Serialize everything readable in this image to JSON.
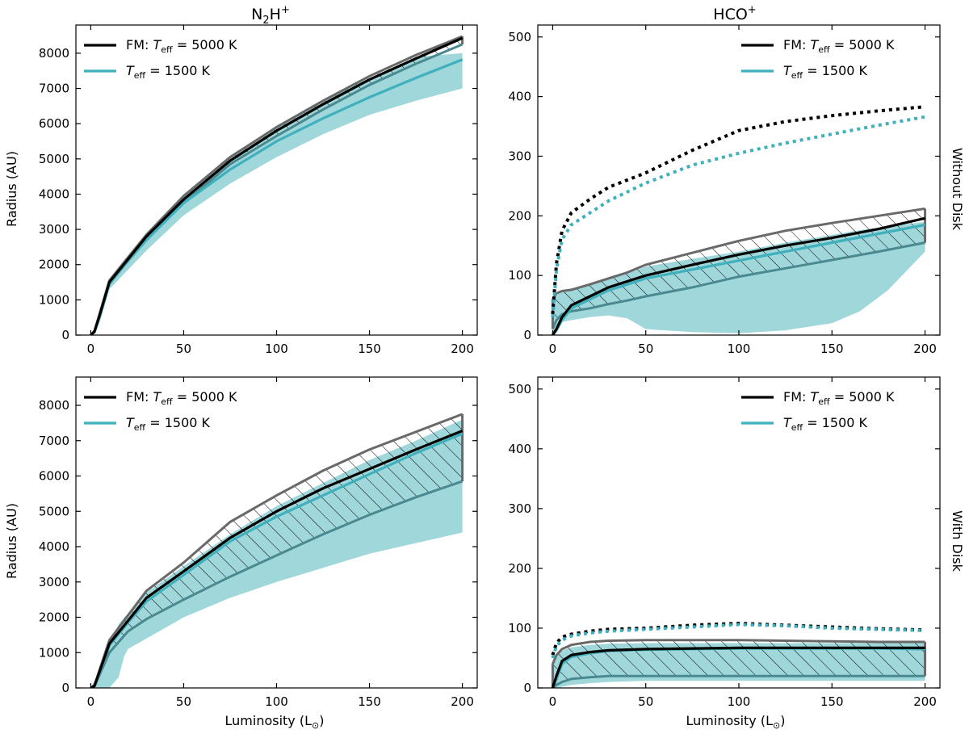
{
  "column_titles": {
    "left": {
      "base": "N",
      "sub": "2",
      "mid": "H",
      "sup": "+"
    },
    "right": {
      "base": "HCO",
      "sup": "+"
    }
  },
  "row_titles": {
    "top": "Without Disk",
    "bottom": "With Disk"
  },
  "axis_labels": {
    "x": "Luminosity (L",
    "x_close": ")",
    "y": "Radius (AU)"
  },
  "legend": {
    "fm_prefix": "FM: ",
    "T": "T",
    "sub": "eff",
    "fm_value": " = 5000 K",
    "teal_value": " = 1500 K"
  },
  "colors": {
    "black": "#000000",
    "teal": "#3fb0bc",
    "teal_fill": "#9fd7db",
    "band_edge": "#696969",
    "teal_edge": "#4a8990"
  },
  "chart_data": [
    {
      "id": "n2h-nodisk",
      "type": "line",
      "molecule": "N2H+",
      "condition": "Without Disk",
      "xlim": [
        -8,
        208
      ],
      "ylim": [
        0,
        8800
      ],
      "xticks": [
        0,
        50,
        100,
        150,
        200
      ],
      "yticks": [
        0,
        1000,
        2000,
        3000,
        4000,
        5000,
        6000,
        7000,
        8000
      ],
      "xlabel": "",
      "ylabel": "Radius (AU)",
      "legend_loc": "upper left",
      "series": [
        {
          "name": "FM: Teff = 5000 K",
          "style": "solid-black",
          "x": [
            0,
            2,
            5,
            10,
            20,
            30,
            50,
            75,
            100,
            125,
            150,
            175,
            200
          ],
          "y": [
            0,
            100,
            600,
            1500,
            2150,
            2800,
            3850,
            4950,
            5800,
            6550,
            7250,
            7850,
            8430
          ]
        },
        {
          "name": "Teff = 1500 K",
          "style": "solid-teal",
          "x": [
            0,
            2,
            5,
            10,
            20,
            30,
            50,
            75,
            100,
            125,
            150,
            175,
            200
          ],
          "y": [
            0,
            80,
            550,
            1450,
            2100,
            2700,
            3750,
            4700,
            5500,
            6150,
            6750,
            7300,
            7820
          ]
        }
      ],
      "bands": [
        {
          "name": "Teff = 1500 K range",
          "style": "teal-fill",
          "x": [
            0,
            2,
            5,
            10,
            20,
            30,
            50,
            75,
            100,
            125,
            150,
            175,
            200
          ],
          "upper": [
            0,
            100,
            600,
            1550,
            2200,
            2900,
            3950,
            5050,
            5950,
            6650,
            7300,
            7900,
            8000
          ],
          "lower": [
            0,
            50,
            400,
            1300,
            1850,
            2400,
            3400,
            4300,
            5050,
            5700,
            6250,
            6650,
            7000
          ]
        },
        {
          "name": "FM range",
          "style": "hatch",
          "x": [
            0,
            2,
            5,
            10,
            20,
            30,
            50,
            75,
            100,
            125,
            150,
            175,
            200
          ],
          "upper": [
            0,
            120,
            650,
            1550,
            2200,
            2850,
            3950,
            5050,
            5900,
            6650,
            7350,
            7950,
            8480
          ],
          "lower": [
            0,
            90,
            570,
            1480,
            2100,
            2720,
            3750,
            4850,
            5650,
            6400,
            7100,
            7700,
            8250
          ]
        }
      ],
      "dotted": []
    },
    {
      "id": "hco-nodisk",
      "type": "line",
      "molecule": "HCO+",
      "condition": "Without Disk",
      "xlim": [
        -8,
        208
      ],
      "ylim": [
        0,
        520
      ],
      "xticks": [
        0,
        50,
        100,
        150,
        200
      ],
      "yticks": [
        0,
        100,
        200,
        300,
        400,
        500
      ],
      "xlabel": "",
      "ylabel": "",
      "legend_loc": "upper right",
      "series": [
        {
          "name": "FM: Teff = 5000 K",
          "style": "solid-black",
          "x": [
            0,
            2,
            5,
            10,
            20,
            30,
            50,
            75,
            100,
            125,
            150,
            175,
            200
          ],
          "y": [
            0,
            10,
            30,
            50,
            65,
            80,
            100,
            118,
            135,
            150,
            163,
            178,
            196
          ]
        },
        {
          "name": "Teff = 1500 K",
          "style": "solid-teal",
          "x": [
            0,
            2,
            5,
            10,
            20,
            30,
            50,
            75,
            100,
            125,
            150,
            175,
            200
          ],
          "y": [
            0,
            8,
            25,
            45,
            60,
            75,
            95,
            110,
            125,
            140,
            155,
            170,
            185
          ]
        }
      ],
      "bands": [
        {
          "name": "Teff = 1500 K range",
          "style": "teal-fill",
          "x": [
            0,
            5,
            10,
            20,
            30,
            40,
            50,
            75,
            100,
            125,
            150,
            165,
            180,
            200
          ],
          "upper": [
            60,
            75,
            78,
            85,
            95,
            103,
            115,
            128,
            140,
            155,
            168,
            176,
            182,
            190
          ],
          "lower": [
            0,
            22,
            25,
            30,
            33,
            28,
            10,
            5,
            3,
            8,
            20,
            40,
            75,
            140
          ]
        },
        {
          "name": "FM range",
          "style": "hatch",
          "x": [
            0,
            2,
            5,
            10,
            20,
            30,
            40,
            50,
            75,
            100,
            125,
            150,
            175,
            200
          ],
          "upper": [
            60,
            70,
            74,
            76,
            85,
            95,
            105,
            118,
            138,
            158,
            175,
            188,
            200,
            212
          ],
          "lower": [
            10,
            25,
            35,
            40,
            45,
            52,
            58,
            65,
            80,
            98,
            112,
            126,
            140,
            155
          ]
        }
      ],
      "dotted": [
        {
          "name": "FM: Teff = 5000 K (dotted)",
          "style": "dotted-black",
          "x": [
            0,
            2,
            5,
            10,
            20,
            30,
            50,
            75,
            100,
            125,
            150,
            175,
            200
          ],
          "y": [
            35,
            120,
            175,
            205,
            228,
            248,
            272,
            310,
            343,
            358,
            368,
            376,
            383
          ]
        },
        {
          "name": "Teff = 1500 K (dotted)",
          "style": "dotted-teal",
          "x": [
            0,
            2,
            5,
            10,
            20,
            30,
            50,
            75,
            100,
            125,
            150,
            175,
            200
          ],
          "y": [
            30,
            110,
            160,
            185,
            205,
            225,
            255,
            285,
            305,
            322,
            337,
            352,
            366
          ]
        }
      ]
    },
    {
      "id": "n2h-disk",
      "type": "line",
      "molecule": "N2H+",
      "condition": "With Disk",
      "xlim": [
        -8,
        208
      ],
      "ylim": [
        0,
        8800
      ],
      "xticks": [
        0,
        50,
        100,
        150,
        200
      ],
      "yticks": [
        0,
        1000,
        2000,
        3000,
        4000,
        5000,
        6000,
        7000,
        8000
      ],
      "xlabel": "Luminosity (L⊙)",
      "ylabel": "Radius (AU)",
      "legend_loc": "upper left",
      "series": [
        {
          "name": "FM: Teff = 5000 K",
          "style": "solid-black",
          "x": [
            0,
            2,
            5,
            10,
            20,
            30,
            50,
            75,
            100,
            125,
            150,
            175,
            200
          ],
          "y": [
            0,
            60,
            500,
            1250,
            1900,
            2550,
            3300,
            4250,
            5000,
            5650,
            6200,
            6750,
            7280
          ]
        },
        {
          "name": "Teff = 1500 K",
          "style": "solid-teal",
          "x": [
            0,
            2,
            5,
            10,
            20,
            30,
            50,
            75,
            100,
            125,
            150,
            175,
            200
          ],
          "y": [
            0,
            50,
            450,
            1200,
            1850,
            2450,
            3200,
            4150,
            4850,
            5450,
            6050,
            6650,
            7200
          ]
        }
      ],
      "bands": [
        {
          "name": "Teff = 1500 K range",
          "style": "teal-fill",
          "x": [
            0,
            5,
            10,
            15,
            18,
            20,
            30,
            50,
            75,
            100,
            125,
            150,
            175,
            200
          ],
          "upper": [
            0,
            500,
            1300,
            1800,
            2000,
            2100,
            2700,
            3450,
            4350,
            5150,
            5800,
            6450,
            7000,
            7600
          ],
          "lower": [
            0,
            0,
            0,
            300,
            900,
            1100,
            1400,
            2000,
            2550,
            3000,
            3400,
            3800,
            4100,
            4400
          ]
        },
        {
          "name": "FM range",
          "style": "hatch",
          "x": [
            0,
            2,
            5,
            10,
            20,
            30,
            50,
            75,
            100,
            125,
            150,
            175,
            200
          ],
          "upper": [
            0,
            80,
            550,
            1350,
            2050,
            2750,
            3550,
            4700,
            5450,
            6150,
            6750,
            7250,
            7750
          ],
          "lower": [
            0,
            40,
            400,
            1000,
            1600,
            1950,
            2500,
            3150,
            3750,
            4350,
            4900,
            5400,
            5850
          ]
        }
      ],
      "dotted": []
    },
    {
      "id": "hco-disk",
      "type": "line",
      "molecule": "HCO+",
      "condition": "With Disk",
      "xlim": [
        -8,
        208
      ],
      "ylim": [
        0,
        520
      ],
      "xticks": [
        0,
        50,
        100,
        150,
        200
      ],
      "yticks": [
        0,
        100,
        200,
        300,
        400,
        500
      ],
      "xlabel": "Luminosity (L⊙)",
      "ylabel": "",
      "legend_loc": "upper right",
      "series": [
        {
          "name": "FM: Teff = 5000 K",
          "style": "solid-black",
          "x": [
            0,
            2,
            5,
            10,
            20,
            30,
            50,
            75,
            100,
            125,
            150,
            175,
            200
          ],
          "y": [
            0,
            20,
            45,
            55,
            60,
            63,
            65,
            66,
            67,
            67,
            67,
            67,
            67
          ]
        },
        {
          "name": "Teff = 1500 K",
          "style": "solid-teal",
          "x": [
            0,
            2,
            5,
            10,
            20,
            30,
            50,
            75,
            100,
            125,
            150,
            175,
            200
          ],
          "y": [
            0,
            15,
            40,
            52,
            58,
            62,
            64,
            65,
            66,
            66,
            66,
            66,
            65
          ]
        }
      ],
      "bands": [
        {
          "name": "Teff = 1500 K range",
          "style": "teal-fill",
          "x": [
            0,
            2,
            5,
            10,
            20,
            30,
            50,
            75,
            100,
            125,
            150,
            175,
            200
          ],
          "upper": [
            45,
            55,
            62,
            68,
            72,
            74,
            75,
            75,
            75,
            75,
            75,
            75,
            75
          ],
          "lower": [
            0,
            0,
            2,
            5,
            8,
            10,
            12,
            12,
            12,
            12,
            12,
            12,
            12
          ]
        },
        {
          "name": "FM range",
          "style": "hatch",
          "x": [
            0,
            2,
            5,
            10,
            20,
            30,
            50,
            75,
            100,
            125,
            150,
            175,
            200
          ],
          "upper": [
            40,
            55,
            65,
            72,
            77,
            79,
            80,
            80,
            80,
            79,
            78,
            77,
            77
          ],
          "lower": [
            0,
            5,
            10,
            15,
            18,
            20,
            20,
            20,
            20,
            20,
            20,
            20,
            20
          ]
        }
      ],
      "dotted": [
        {
          "name": "FM: Teff = 5000 K (dotted)",
          "style": "dotted-black",
          "x": [
            0,
            2,
            5,
            10,
            20,
            30,
            50,
            75,
            100,
            125,
            150,
            175,
            200
          ],
          "y": [
            55,
            75,
            85,
            90,
            95,
            98,
            100,
            105,
            108,
            105,
            102,
            99,
            97
          ]
        },
        {
          "name": "Teff = 1500 K (dotted)",
          "style": "dotted-teal",
          "x": [
            0,
            2,
            5,
            10,
            20,
            30,
            50,
            75,
            100,
            125,
            150,
            175,
            200
          ],
          "y": [
            50,
            70,
            80,
            87,
            92,
            95,
            98,
            102,
            106,
            104,
            100,
            98,
            96
          ]
        }
      ]
    }
  ]
}
